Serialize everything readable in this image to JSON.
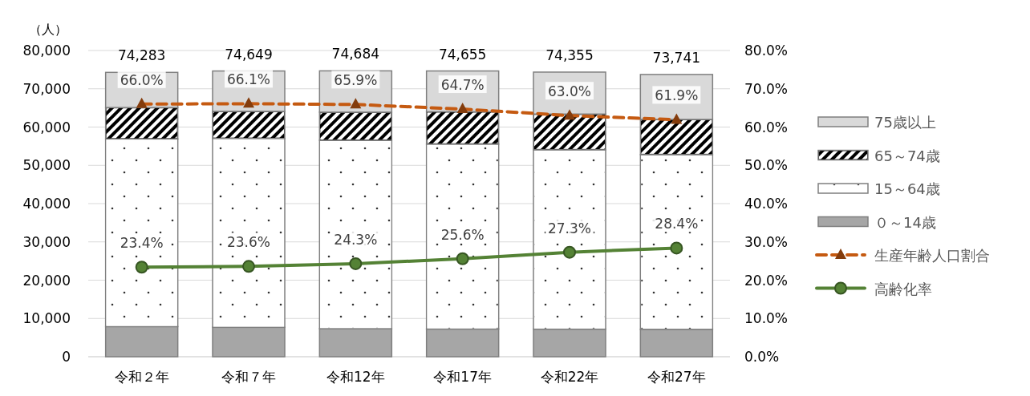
{
  "chart_data": {
    "type": "bar",
    "stacked": true,
    "ylabel": "（人）",
    "categories": [
      "令和２年",
      "令和７年",
      "令和12年",
      "令和17年",
      "令和22年",
      "令和27年"
    ],
    "ylim": [
      0,
      80000
    ],
    "yticks": [
      0,
      {
        "value": 10000,
        "label": "10,000"
      },
      {
        "value": 20000,
        "label": "20,000"
      },
      {
        "value": 30000,
        "label": "30,000"
      },
      {
        "value": 40000,
        "label": "40,000"
      },
      {
        "value": 50000,
        "label": "50,000"
      },
      {
        "value": 60000,
        "label": "60,000"
      },
      {
        "value": 70000,
        "label": "70,000"
      },
      {
        "value": 80000,
        "label": "80,000"
      }
    ],
    "y2lim": [
      0,
      80
    ],
    "y2ticks": [
      {
        "value": 0,
        "label": "0.0%"
      },
      {
        "value": 10,
        "label": "10.0%"
      },
      {
        "value": 20,
        "label": "20.0%"
      },
      {
        "value": 30,
        "label": "30.0%"
      },
      {
        "value": 40,
        "label": "40.0%"
      },
      {
        "value": 50,
        "label": "50.0%"
      },
      {
        "value": 60,
        "label": "60.0%"
      },
      {
        "value": 70,
        "label": "70.0%"
      },
      {
        "value": 80,
        "label": "80.0%"
      }
    ],
    "grid": "y",
    "legend": "right",
    "series": [
      {
        "name": "０～14歳",
        "color": "#a6a6a6",
        "values": [
          7874,
          7689,
          7319,
          7241,
          7212,
          7153
        ]
      },
      {
        "name": "15～64歳",
        "color": "#ffffff",
        "values": [
          49027,
          49343,
          49217,
          48302,
          46844,
          45646
        ]
      },
      {
        "name": "65～74歳",
        "color": "#000000",
        "values": [
          8200,
          7070,
          7360,
          8460,
          9340,
          9200
        ]
      },
      {
        "name": "75歳以上",
        "color": "#d9d9d9",
        "values": [
          9182,
          10547,
          10788,
          10652,
          10959,
          11742
        ]
      },
      {
        "name": "生産年齢人口割合",
        "type": "line",
        "axis": "y2",
        "color": "#c55a11",
        "marker": "triangle",
        "line_style": "dashed",
        "values": [
          66.0,
          66.1,
          65.9,
          64.7,
          63.0,
          61.9
        ],
        "value_labels": [
          "66.0%",
          "66.1%",
          "65.9%",
          "64.7%",
          "63.0%",
          "61.9%"
        ]
      },
      {
        "name": "高齢化率",
        "type": "line",
        "axis": "y2",
        "color": "#548235",
        "marker": "circle",
        "line_style": "solid",
        "values": [
          23.4,
          23.6,
          24.3,
          25.6,
          27.3,
          28.4
        ],
        "value_labels": [
          "23.4%",
          "23.6%",
          "24.3%",
          "25.6%",
          "27.3%",
          "28.4%"
        ]
      }
    ],
    "totals": [
      "74,283",
      "74,649",
      "74,684",
      "74,655",
      "74,355",
      "73,741"
    ]
  }
}
